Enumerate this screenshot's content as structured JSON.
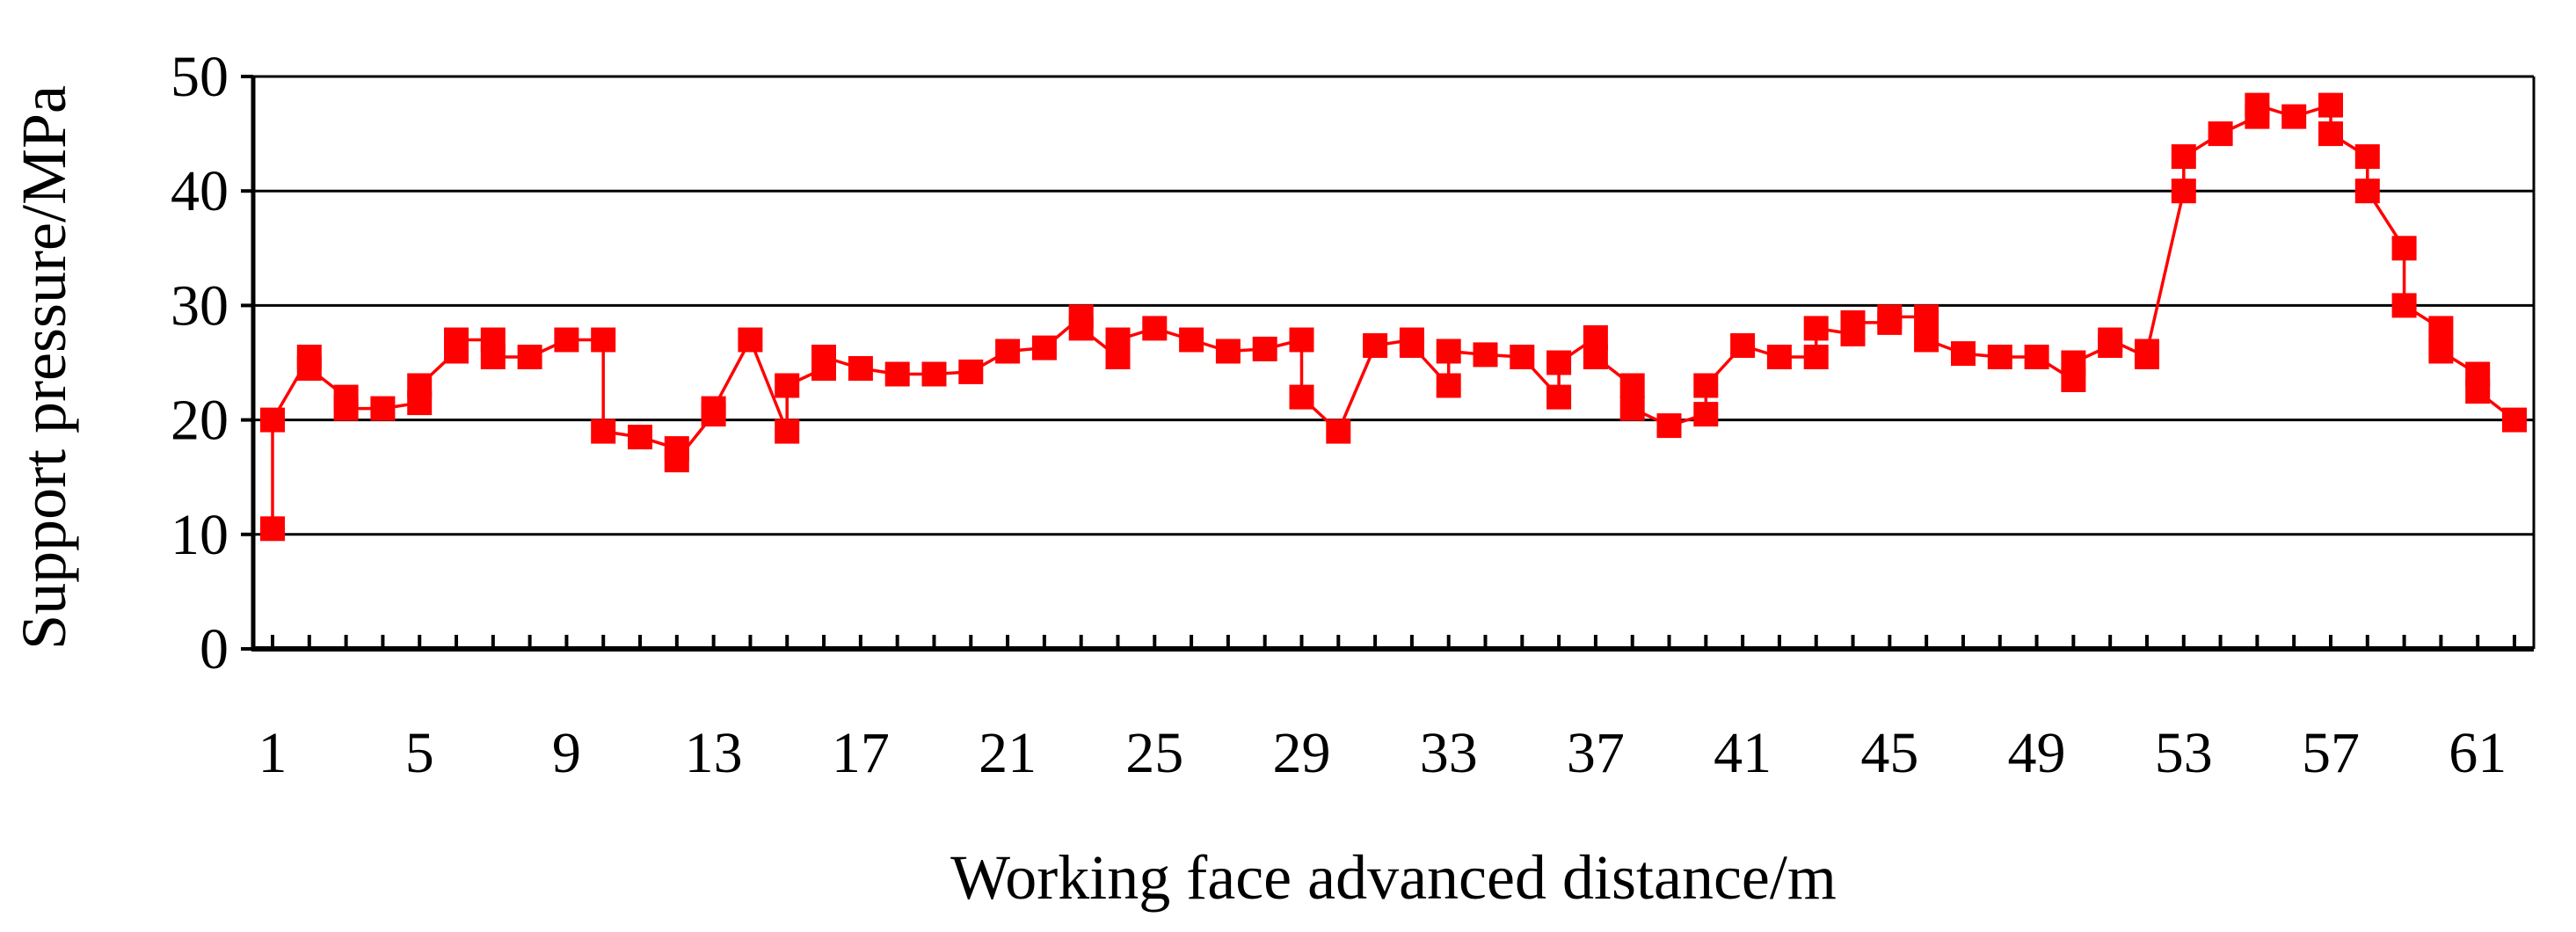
{
  "chart_data": {
    "type": "line",
    "title": "",
    "xlabel": "Working face advanced distance/m",
    "ylabel": "Support pressure/MPa",
    "ylim": [
      0,
      50
    ],
    "xlim": [
      1,
      62
    ],
    "yticks": [
      "0",
      "10",
      "20",
      "30",
      "40",
      "50"
    ],
    "xticks": [
      "1",
      "5",
      "9",
      "13",
      "17",
      "21",
      "25",
      "29",
      "33",
      "37",
      "41",
      "45",
      "49",
      "53",
      "57",
      "61"
    ],
    "grid": true,
    "legend": "none",
    "colors": {
      "series": "#ff0000",
      "axis": "#000000",
      "grid": "#000000"
    },
    "series": [
      {
        "marker": "square",
        "points": [
          [
            1,
            10.5
          ],
          [
            1,
            20
          ],
          [
            2,
            25.5
          ],
          [
            2,
            24.5
          ],
          [
            3,
            22
          ],
          [
            3,
            21
          ],
          [
            4,
            21
          ],
          [
            5,
            21.5
          ],
          [
            5,
            23
          ],
          [
            6,
            26
          ],
          [
            6,
            27
          ],
          [
            7,
            27
          ],
          [
            7,
            25.5
          ],
          [
            8,
            25.5
          ],
          [
            9,
            27
          ],
          [
            10,
            27
          ],
          [
            10,
            19
          ],
          [
            11,
            18.5
          ],
          [
            12,
            17.5
          ],
          [
            12,
            16.5
          ],
          [
            13,
            20.5
          ],
          [
            13,
            21
          ],
          [
            14,
            27
          ],
          [
            15,
            19
          ],
          [
            15,
            23
          ],
          [
            16,
            24.5
          ],
          [
            16,
            25.5
          ],
          [
            17,
            24.5
          ],
          [
            18,
            24
          ],
          [
            19,
            24
          ],
          [
            20,
            24.2
          ],
          [
            21,
            26
          ],
          [
            22,
            26.3
          ],
          [
            23,
            29
          ],
          [
            23,
            28
          ],
          [
            24,
            25.5
          ],
          [
            24,
            27
          ],
          [
            25,
            28
          ],
          [
            26,
            27
          ],
          [
            27,
            26
          ],
          [
            28,
            26.2
          ],
          [
            29,
            27
          ],
          [
            29,
            22
          ],
          [
            30,
            19
          ],
          [
            31,
            26.5
          ],
          [
            32,
            27
          ],
          [
            32,
            26.5
          ],
          [
            33,
            23
          ],
          [
            33,
            26
          ],
          [
            34,
            25.7
          ],
          [
            35,
            25.5
          ],
          [
            36,
            22
          ],
          [
            36,
            25
          ],
          [
            37,
            27.2
          ],
          [
            37,
            25.5
          ],
          [
            38,
            23
          ],
          [
            38,
            21
          ],
          [
            39,
            19.5
          ],
          [
            40,
            20.5
          ],
          [
            40,
            23
          ],
          [
            41,
            26.5
          ],
          [
            42,
            25.5
          ],
          [
            43,
            25.5
          ],
          [
            43,
            28
          ],
          [
            44,
            27.5
          ],
          [
            44,
            28.5
          ],
          [
            45,
            28.5
          ],
          [
            45,
            29
          ],
          [
            46,
            29
          ],
          [
            46,
            27
          ],
          [
            47,
            25.8
          ],
          [
            48,
            25.5
          ],
          [
            49,
            25.5
          ],
          [
            50,
            23.5
          ],
          [
            50,
            25
          ],
          [
            51,
            26.5
          ],
          [
            51,
            27
          ],
          [
            52,
            25.5
          ],
          [
            52,
            26
          ],
          [
            53,
            40
          ],
          [
            53,
            43
          ],
          [
            54,
            45
          ],
          [
            55,
            46.5
          ],
          [
            55,
            47.5
          ],
          [
            56,
            46.5
          ],
          [
            57,
            47.5
          ],
          [
            57,
            45
          ],
          [
            58,
            43
          ],
          [
            58,
            40
          ],
          [
            59,
            35
          ],
          [
            59,
            30
          ],
          [
            60,
            28
          ],
          [
            60,
            26
          ],
          [
            61,
            24
          ],
          [
            61,
            22.5
          ],
          [
            62,
            20
          ]
        ]
      }
    ]
  }
}
